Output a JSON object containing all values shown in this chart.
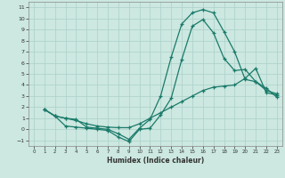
{
  "xlabel": "Humidex (Indice chaleur)",
  "bg_color": "#cce8e0",
  "line_color": "#1a7a6a",
  "grid_color": "#aad0c8",
  "xlim": [
    -0.5,
    23.5
  ],
  "ylim": [
    -1.5,
    11.5
  ],
  "xticks": [
    0,
    1,
    2,
    3,
    4,
    5,
    6,
    7,
    8,
    9,
    10,
    11,
    12,
    13,
    14,
    15,
    16,
    17,
    18,
    19,
    20,
    21,
    22,
    23
  ],
  "yticks": [
    -1,
    0,
    1,
    2,
    3,
    4,
    5,
    6,
    7,
    8,
    9,
    10,
    11
  ],
  "line1_x": [
    1,
    2,
    3,
    4,
    5,
    6,
    7,
    8,
    9,
    10,
    11,
    12,
    13,
    14,
    15,
    16,
    17,
    18,
    19,
    20,
    21,
    22,
    23
  ],
  "line1_y": [
    1.8,
    1.2,
    1.0,
    0.9,
    0.2,
    0.1,
    0.0,
    -0.4,
    -0.9,
    0.1,
    0.9,
    3.0,
    6.5,
    9.5,
    10.5,
    10.8,
    10.5,
    8.8,
    7.0,
    4.5,
    4.3,
    3.5,
    3.2
  ],
  "line2_x": [
    1,
    2,
    3,
    4,
    5,
    6,
    7,
    8,
    9,
    10,
    11,
    12,
    13,
    14,
    15,
    16,
    17,
    18,
    19,
    20,
    21,
    22,
    23
  ],
  "line2_y": [
    1.8,
    1.2,
    0.3,
    0.2,
    0.1,
    0.0,
    -0.1,
    -0.7,
    -1.1,
    0.0,
    0.1,
    1.3,
    2.8,
    6.3,
    9.3,
    9.9,
    8.7,
    6.4,
    5.3,
    5.4,
    4.3,
    3.7,
    2.9
  ],
  "line3_x": [
    1,
    2,
    3,
    4,
    5,
    6,
    7,
    8,
    9,
    10,
    11,
    12,
    13,
    14,
    15,
    16,
    17,
    18,
    19,
    20,
    21,
    22,
    23
  ],
  "line3_y": [
    1.8,
    1.2,
    1.0,
    0.8,
    0.5,
    0.3,
    0.2,
    0.15,
    0.15,
    0.5,
    1.0,
    1.5,
    2.0,
    2.5,
    3.0,
    3.5,
    3.8,
    3.9,
    4.0,
    4.6,
    5.5,
    3.3,
    3.1
  ]
}
